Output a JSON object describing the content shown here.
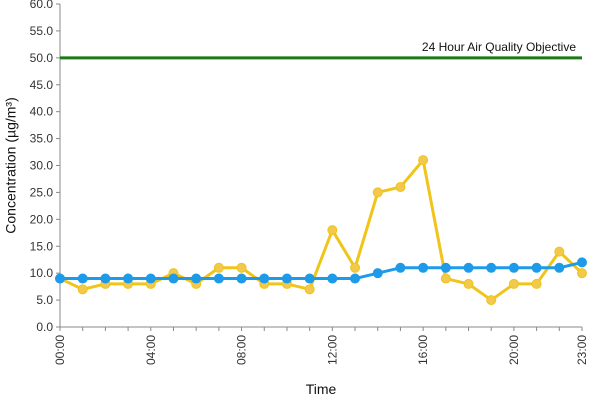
{
  "chart_data": {
    "type": "line",
    "title": "",
    "xlabel": "Time",
    "ylabel": "Concentration (µg/m³)",
    "ylim": [
      0,
      60
    ],
    "yticks": [
      "0.0",
      "5.0",
      "10.0",
      "15.0",
      "20.0",
      "25.0",
      "30.0",
      "35.0",
      "40.0",
      "45.0",
      "50.0",
      "55.0",
      "60.0"
    ],
    "xlim": [
      0,
      23
    ],
    "x_tick_labels": [
      {
        "hour": 0,
        "label": "00:00"
      },
      {
        "hour": 4,
        "label": "04:00"
      },
      {
        "hour": 8,
        "label": "08:00"
      },
      {
        "hour": 12,
        "label": "12:00"
      },
      {
        "hour": 16,
        "label": "16:00"
      },
      {
        "hour": 20,
        "label": "20:00"
      },
      {
        "hour": 23,
        "label": "23:00"
      }
    ],
    "x": [
      0,
      1,
      2,
      3,
      4,
      5,
      6,
      7,
      8,
      9,
      10,
      11,
      12,
      13,
      14,
      15,
      16,
      17,
      18,
      19,
      20,
      21,
      22,
      23
    ],
    "grid": false,
    "legend": "none",
    "reference_line": {
      "value": 50,
      "label": "24 Hour Air Quality Objective",
      "color": "#1a7a1a"
    },
    "series": [
      {
        "color": "#f0c419",
        "marker_color": "#f2c94c",
        "values": [
          9,
          7,
          8,
          8,
          8,
          10,
          8,
          11,
          11,
          8,
          8,
          7,
          18,
          11,
          25,
          26,
          31,
          9,
          8,
          5,
          8,
          8,
          14,
          10
        ]
      },
      {
        "color": "#1e9be8",
        "marker_color": "#1e9be8",
        "values": [
          9,
          9,
          9,
          9,
          9,
          9,
          9,
          9,
          9,
          9,
          9,
          9,
          9,
          9,
          10,
          11,
          11,
          11,
          11,
          11,
          11,
          11,
          11,
          12
        ]
      }
    ]
  }
}
